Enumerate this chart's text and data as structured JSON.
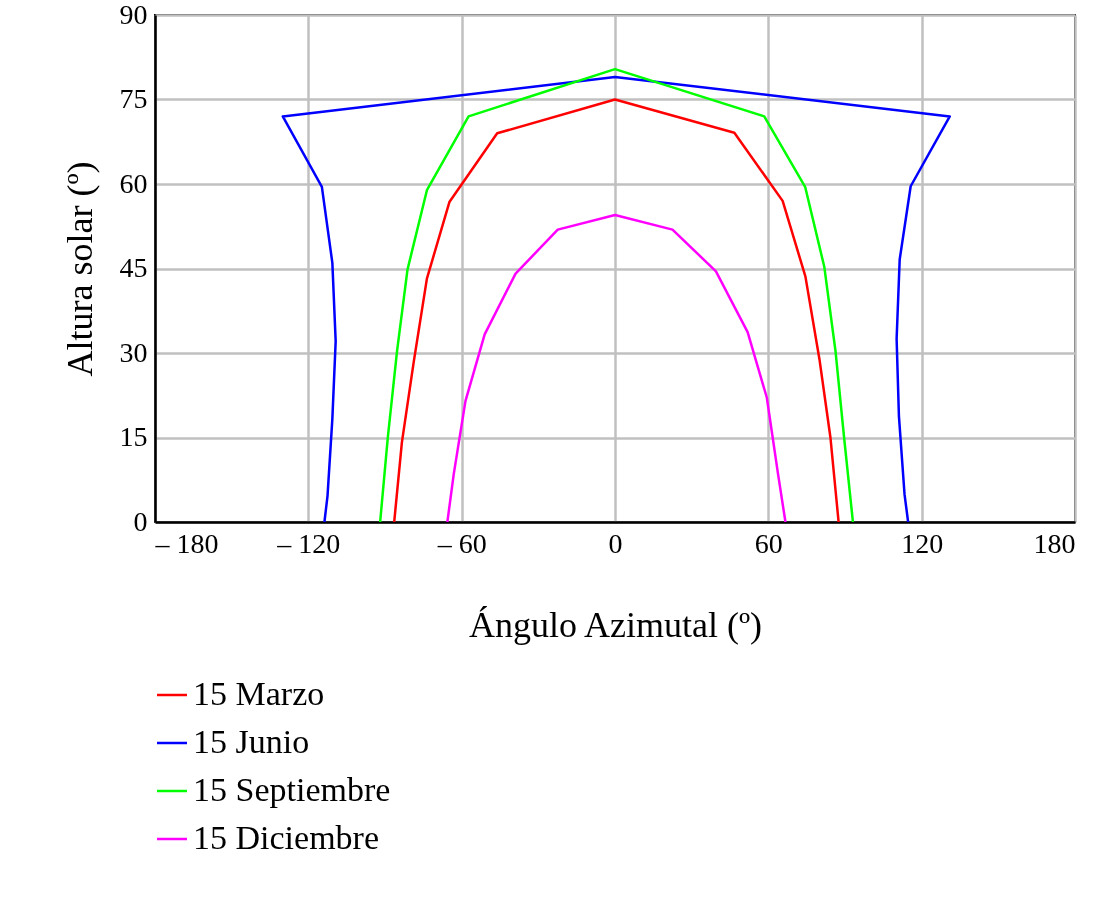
{
  "chart_data": {
    "type": "line",
    "xlabel": "Ángulo Azimutal (º)",
    "ylabel": "Altura solar (º)",
    "xlim": [
      -180,
      180
    ],
    "xticks": [
      {
        "value": -180,
        "label": "– 180"
      },
      {
        "value": -120,
        "label": "– 120"
      },
      {
        "value": -60,
        "label": "– 60"
      },
      0,
      60,
      120,
      180
    ],
    "ylim": [
      0,
      90
    ],
    "yticks": [
      0,
      15,
      30,
      45,
      60,
      75,
      90
    ],
    "grid": true,
    "legend": "bottom",
    "marker": "none",
    "line_style": "solid",
    "series": [
      {
        "name": "15 Marzo",
        "color": "#ff0000",
        "x": [
          -86.4,
          -83.4,
          -78.8,
          -73.6,
          -64.8,
          -46.1,
          0,
          46.7,
          65.6,
          74.5,
          80.0,
          84.3,
          87.5
        ],
        "values": [
          0,
          14.1,
          28.3,
          43.2,
          56.8,
          69.0,
          75,
          69.1,
          57.0,
          43.6,
          28.9,
          15.0,
          0
        ]
      },
      {
        "name": "15 Junio",
        "color": "#0000ff",
        "x": [
          -113.7,
          -112.5,
          -110.6,
          -109.3,
          -110.6,
          -114.7,
          -130.0,
          0,
          131.0,
          115.7,
          111.4,
          110.2,
          111.1,
          113.3,
          114.7
        ],
        "values": [
          0,
          4.6,
          18.3,
          32.1,
          46.0,
          59.5,
          72.0,
          79.0,
          72.0,
          59.6,
          46.6,
          32.5,
          18.8,
          4.9,
          0
        ]
      },
      {
        "name": "15 Septiembre",
        "color": "#00ff00",
        "x": [
          -91.9,
          -88.9,
          -85.3,
          -81.2,
          -73.6,
          -57.3,
          0,
          58.4,
          74.4,
          81.9,
          86.3,
          89.6,
          93.1
        ],
        "values": [
          0,
          15.0,
          30.3,
          44.8,
          58.9,
          72.0,
          80.4,
          72.0,
          59.5,
          45.3,
          30.3,
          15.2,
          0
        ]
      },
      {
        "name": "15 Diciembre",
        "color": "#ff00ff",
        "x": [
          -65.6,
          -63.1,
          -58.5,
          -51.0,
          -38.9,
          -22.4,
          0,
          22.5,
          39.5,
          51.9,
          59.4,
          63.7,
          66.7
        ],
        "values": [
          0,
          8.5,
          21.5,
          33.3,
          44.1,
          51.9,
          54.5,
          51.9,
          44.5,
          33.7,
          22.1,
          8.8,
          0
        ]
      }
    ]
  }
}
